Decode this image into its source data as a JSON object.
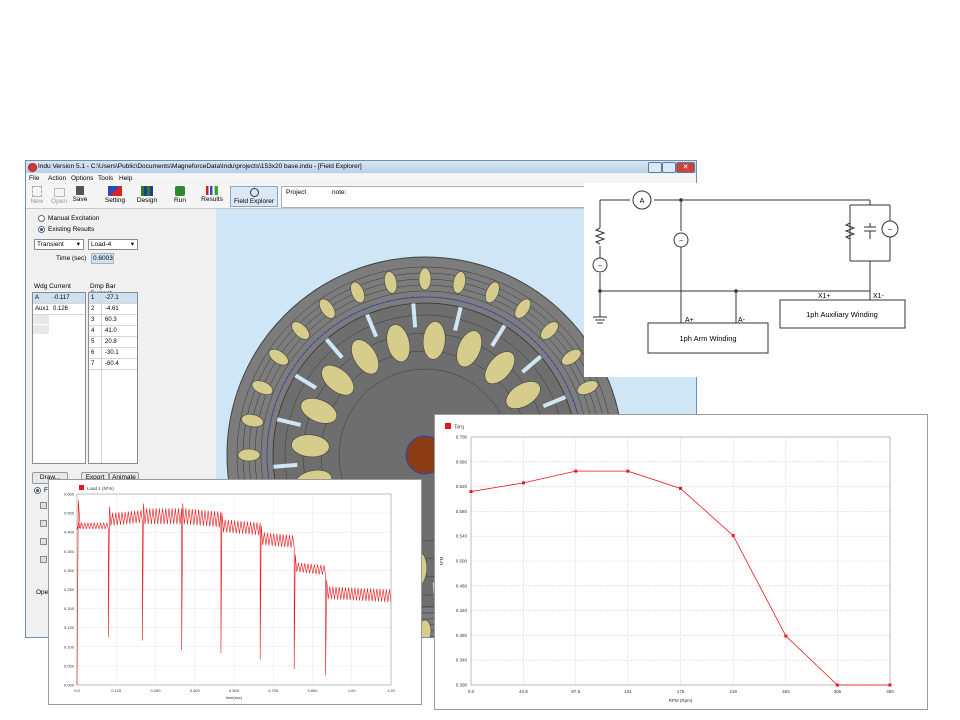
{
  "window": {
    "title": "Indu Version 5.1 - C:\\Users\\Public\\Documents\\MagneforceData\\Indu\\projects\\153x20 base.indu - [Field Explorer]",
    "menu": [
      "File",
      "Action",
      "Options",
      "Tools",
      "Help"
    ],
    "toolbar": {
      "new": "New",
      "open": "Open",
      "save": "Save",
      "setting": "Setting",
      "design": "Design",
      "run": "Run",
      "results": "Results",
      "field_explorer": "Field Explorer"
    },
    "project_label": "Project",
    "note_label": "note:"
  },
  "left_panel": {
    "manual_excitation": "Manual Excitation",
    "existing_results": "Existing Results",
    "analysis_type": "Transient",
    "load_case": "Load-4",
    "time_label": "Time (sec)",
    "time_value": "0.6003",
    "wdg_header": "Wdg Current",
    "wdg_rows": [
      {
        "name": "A",
        "value": "-0.117"
      },
      {
        "name": "Aux1",
        "value": "0.126"
      }
    ],
    "dmp_header": "Dmp Bar Current",
    "dmp_rows": [
      {
        "n": "1",
        "value": "-27.1"
      },
      {
        "n": "2",
        "value": "-4.61"
      },
      {
        "n": "3",
        "value": "60.3"
      },
      {
        "n": "4",
        "value": "41.0"
      },
      {
        "n": "5",
        "value": "20.8"
      },
      {
        "n": "6",
        "value": "-30.1"
      },
      {
        "n": "7",
        "value": "-60.4"
      }
    ],
    "draw_button": "Draw...",
    "export_button": "Export",
    "animate_button": "Animate",
    "fe_radio": "FE",
    "ope_label": "Ope"
  },
  "circuit": {
    "ammeter": "A",
    "arm_plus": "A+",
    "arm_minus": "A-",
    "x1_plus": "X1+",
    "x1_minus": "X1-",
    "arm_winding": "1ph Arm Winding",
    "aux_winding": "1ph Auxiliary Winding"
  },
  "chart_data": [
    {
      "type": "line",
      "legend": "Load 1 (N*m)",
      "x_ticks": [
        "0.0",
        "0.125",
        "0.250",
        "0.400",
        "0.500",
        "0.700",
        "0.800",
        "1.00",
        "1.20"
      ],
      "y_ticks": [
        "0.600",
        "0.500",
        "0.400",
        "0.350",
        "0.300",
        "0.250",
        "0.200",
        "0.150",
        "0.100",
        "0.050",
        "0.000"
      ],
      "xlabel": "time(sec)",
      "segments": [
        {
          "x": [
            0.0,
            0.12
          ],
          "y": [
            0.5,
            0.5
          ],
          "ripple": 0.01
        },
        {
          "x": [
            0.13,
            0.25
          ],
          "y": [
            0.52,
            0.53
          ],
          "ripple": 0.02
        },
        {
          "x": [
            0.26,
            0.4
          ],
          "y": [
            0.53,
            0.53
          ],
          "ripple": 0.025
        },
        {
          "x": [
            0.41,
            0.55
          ],
          "y": [
            0.53,
            0.52
          ],
          "ripple": 0.025
        },
        {
          "x": [
            0.56,
            0.7
          ],
          "y": [
            0.5,
            0.49
          ],
          "ripple": 0.02
        },
        {
          "x": [
            0.71,
            0.83
          ],
          "y": [
            0.46,
            0.45
          ],
          "ripple": 0.02
        },
        {
          "x": [
            0.84,
            0.95
          ],
          "y": [
            0.37,
            0.36
          ],
          "ripple": 0.015
        },
        {
          "x": [
            0.96,
            1.2
          ],
          "y": [
            0.29,
            0.28
          ],
          "ripple": 0.02
        }
      ],
      "dips": [
        {
          "x": 0.12,
          "y": 0.15
        },
        {
          "x": 0.25,
          "y": 0.14
        },
        {
          "x": 0.4,
          "y": 0.11
        },
        {
          "x": 0.55,
          "y": 0.1
        },
        {
          "x": 0.7,
          "y": 0.08
        },
        {
          "x": 0.83,
          "y": 0.05
        },
        {
          "x": 0.95,
          "y": 0.03
        }
      ]
    },
    {
      "type": "line",
      "legend": "Torq",
      "x": [
        0,
        43.8,
        87.5,
        131,
        175,
        219,
        263,
        306,
        350
      ],
      "x_ticks": [
        "0.0",
        "43.8",
        "87.5",
        "131",
        "175",
        "219",
        "263",
        "306",
        "350"
      ],
      "values": [
        0.612,
        0.626,
        0.645,
        0.645,
        0.617,
        0.541,
        0.379,
        0.2,
        0.03
      ],
      "y_ticks": [
        "0.700",
        "0.660",
        "0.620",
        "0.580",
        "0.540",
        "0.500",
        "0.460",
        "0.420",
        "0.380",
        "0.340",
        "0.300"
      ],
      "xlabel": "RPM (Rpm)",
      "ylabel": "N*M",
      "color": "#e8161b"
    }
  ],
  "colors": {
    "accent": "#e8161b",
    "slot_fill": "#d6cc8c",
    "lamination": "#7c7c7c",
    "canvas_bg": "#cfe6f7"
  }
}
